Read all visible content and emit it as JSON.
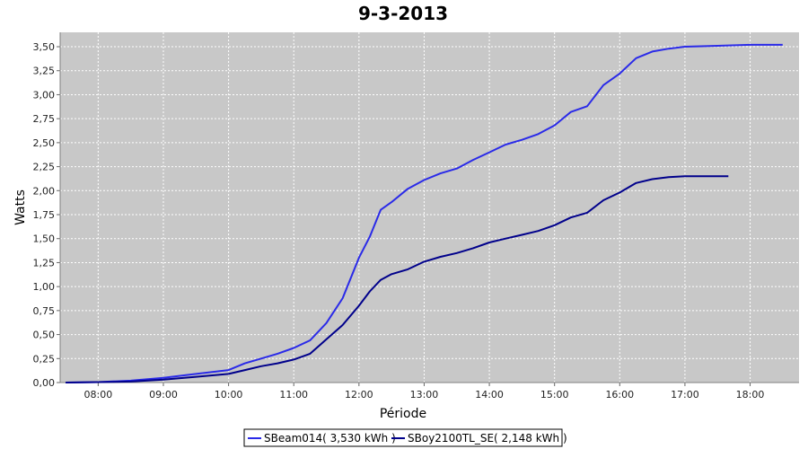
{
  "chart_data": {
    "type": "line",
    "title": "9-3-2013",
    "xlabel": "Période",
    "ylabel": "Watts",
    "x_ticks": [
      "08:00",
      "09:00",
      "10:00",
      "11:00",
      "12:00",
      "13:00",
      "14:00",
      "15:00",
      "16:00",
      "17:00",
      "18:00"
    ],
    "y_ticks": [
      "0,00",
      "0,25",
      "0,50",
      "0,75",
      "1,00",
      "1,25",
      "1,50",
      "1,75",
      "2,00",
      "2,25",
      "2,50",
      "2,75",
      "3,00",
      "3,25",
      "3,50"
    ],
    "xlim": [
      "07:25",
      "18:45"
    ],
    "ylim": [
      0,
      3.65
    ],
    "grid": true,
    "legend_position": "bottom-center",
    "colors": {
      "plot_background": "#c8c8c8",
      "grid": "#ffffff"
    },
    "series": [
      {
        "name": "SBeam014( 3,530 kWh )",
        "color": "#2a2ae8",
        "x": [
          "07:30",
          "08:00",
          "08:30",
          "09:00",
          "09:30",
          "10:00",
          "10:15",
          "10:30",
          "10:45",
          "11:00",
          "11:15",
          "11:30",
          "11:45",
          "12:00",
          "12:10",
          "12:20",
          "12:30",
          "12:45",
          "13:00",
          "13:15",
          "13:30",
          "13:45",
          "14:00",
          "14:15",
          "14:30",
          "14:45",
          "15:00",
          "15:15",
          "15:30",
          "15:45",
          "16:00",
          "16:15",
          "16:30",
          "16:45",
          "17:00",
          "17:30",
          "18:00",
          "18:30"
        ],
        "y": [
          0.0,
          0.005,
          0.02,
          0.05,
          0.09,
          0.13,
          0.2,
          0.25,
          0.3,
          0.36,
          0.44,
          0.62,
          0.88,
          1.3,
          1.52,
          1.8,
          1.88,
          2.02,
          2.11,
          2.18,
          2.23,
          2.32,
          2.4,
          2.48,
          2.53,
          2.59,
          2.68,
          2.82,
          2.88,
          3.1,
          3.22,
          3.38,
          3.45,
          3.48,
          3.5,
          3.51,
          3.52,
          3.52
        ]
      },
      {
        "name": "SBoy2100TL_SE( 2,148 kWh )",
        "color": "#00008b",
        "x": [
          "07:30",
          "08:00",
          "08:30",
          "09:00",
          "09:30",
          "10:00",
          "10:15",
          "10:30",
          "10:45",
          "11:00",
          "11:15",
          "11:30",
          "11:45",
          "12:00",
          "12:10",
          "12:20",
          "12:30",
          "12:45",
          "13:00",
          "13:15",
          "13:30",
          "13:45",
          "14:00",
          "14:15",
          "14:30",
          "14:45",
          "15:00",
          "15:15",
          "15:30",
          "15:45",
          "16:00",
          "16:15",
          "16:30",
          "16:45",
          "17:00",
          "17:20",
          "17:40"
        ],
        "y": [
          0.0,
          0.005,
          0.01,
          0.03,
          0.06,
          0.09,
          0.13,
          0.17,
          0.2,
          0.24,
          0.3,
          0.45,
          0.6,
          0.8,
          0.95,
          1.07,
          1.13,
          1.18,
          1.26,
          1.31,
          1.35,
          1.4,
          1.46,
          1.5,
          1.54,
          1.58,
          1.64,
          1.72,
          1.77,
          1.9,
          1.98,
          2.08,
          2.12,
          2.14,
          2.15,
          2.15,
          2.15
        ]
      }
    ]
  }
}
